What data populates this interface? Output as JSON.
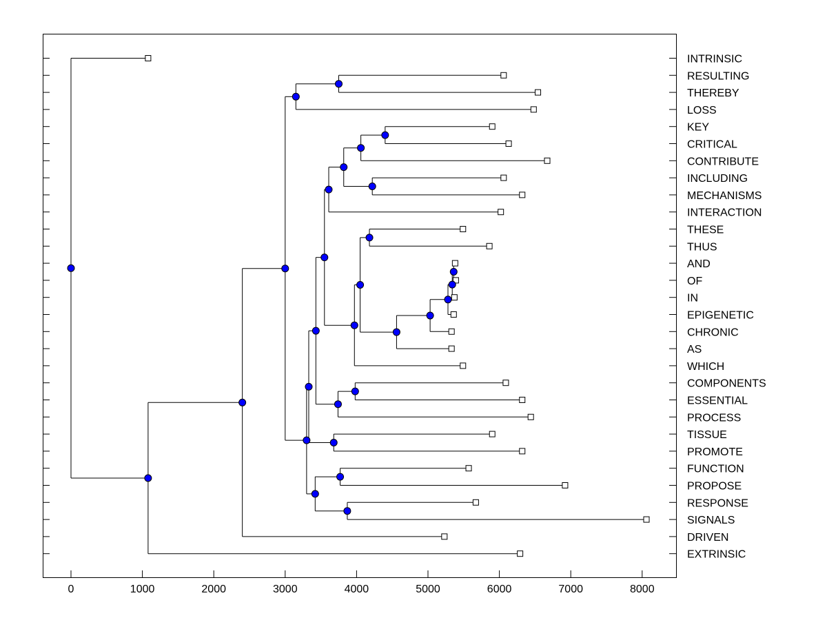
{
  "chart_data": {
    "type": "dendrogram",
    "title": "",
    "xlabel": "",
    "ylabel": "",
    "xlim": [
      -400,
      8500
    ],
    "x_ticks": [
      0,
      1000,
      2000,
      3000,
      4000,
      5000,
      6000,
      7000,
      8000
    ],
    "x_tick_labels": [
      "0",
      "1000",
      "2000",
      "3000",
      "4000",
      "5000",
      "6000",
      "7000",
      "8000"
    ],
    "grid": false,
    "colors": {
      "node_fill": "#0000ff",
      "leaf_fill": "#ffffff",
      "line": "#000000"
    },
    "leaves": [
      {
        "id": "l0",
        "label": "INTRINSIC",
        "distance": 1080
      },
      {
        "id": "l1",
        "label": "RESULTING",
        "distance": 6060
      },
      {
        "id": "l2",
        "label": "THEREBY",
        "distance": 6540
      },
      {
        "id": "l3",
        "label": "LOSS",
        "distance": 6480
      },
      {
        "id": "l4",
        "label": "KEY",
        "distance": 5900
      },
      {
        "id": "l5",
        "label": "CRITICAL",
        "distance": 6130
      },
      {
        "id": "l6",
        "label": "CONTRIBUTE",
        "distance": 6670
      },
      {
        "id": "l7",
        "label": "INCLUDING",
        "distance": 6060
      },
      {
        "id": "l8",
        "label": "MECHANISMS",
        "distance": 6320
      },
      {
        "id": "l9",
        "label": "INTERACTION",
        "distance": 6020
      },
      {
        "id": "l10",
        "label": "THESE",
        "distance": 5490
      },
      {
        "id": "l11",
        "label": "THUS",
        "distance": 5860
      },
      {
        "id": "l12",
        "label": "AND",
        "distance": 5380
      },
      {
        "id": "l13",
        "label": "OF",
        "distance": 5390
      },
      {
        "id": "l14",
        "label": "IN",
        "distance": 5370
      },
      {
        "id": "l15",
        "label": "EPIGENETIC",
        "distance": 5360
      },
      {
        "id": "l16",
        "label": "CHRONIC",
        "distance": 5330
      },
      {
        "id": "l17",
        "label": "AS",
        "distance": 5330
      },
      {
        "id": "l18",
        "label": "WHICH",
        "distance": 5490
      },
      {
        "id": "l19",
        "label": "COMPONENTS",
        "distance": 6090
      },
      {
        "id": "l20",
        "label": "ESSENTIAL",
        "distance": 6320
      },
      {
        "id": "l21",
        "label": "PROCESS",
        "distance": 6440
      },
      {
        "id": "l22",
        "label": "TISSUE",
        "distance": 5900
      },
      {
        "id": "l23",
        "label": "PROMOTE",
        "distance": 6320
      },
      {
        "id": "l24",
        "label": "FUNCTION",
        "distance": 5570
      },
      {
        "id": "l25",
        "label": "PROPOSE",
        "distance": 6920
      },
      {
        "id": "l26",
        "label": "RESPONSE",
        "distance": 5670
      },
      {
        "id": "l27",
        "label": "SIGNALS",
        "distance": 8060
      },
      {
        "id": "l28",
        "label": "DRIVEN",
        "distance": 5230
      },
      {
        "id": "l29",
        "label": "EXTRINSIC",
        "distance": 6290
      }
    ],
    "nodes": [
      {
        "id": "n1",
        "distance": 5360,
        "children": [
          "l12",
          "l13"
        ]
      },
      {
        "id": "n2",
        "distance": 5340,
        "children": [
          "n1",
          "l14"
        ]
      },
      {
        "id": "n3",
        "distance": 5280,
        "children": [
          "n2",
          "l15"
        ]
      },
      {
        "id": "n4",
        "distance": 5030,
        "children": [
          "n3",
          "l16"
        ]
      },
      {
        "id": "n5",
        "distance": 4560,
        "children": [
          "n4",
          "l17"
        ]
      },
      {
        "id": "n6",
        "distance": 4180,
        "children": [
          "l10",
          "l11"
        ]
      },
      {
        "id": "n7",
        "distance": 4050,
        "children": [
          "n6",
          "n5"
        ]
      },
      {
        "id": "n8",
        "distance": 3970,
        "children": [
          "n7",
          "l18"
        ]
      },
      {
        "id": "n9",
        "distance": 4400,
        "children": [
          "l4",
          "l5"
        ]
      },
      {
        "id": "n10",
        "distance": 4060,
        "children": [
          "n9",
          "l6"
        ]
      },
      {
        "id": "n11",
        "distance": 4220,
        "children": [
          "l7",
          "l8"
        ]
      },
      {
        "id": "n12",
        "distance": 3820,
        "children": [
          "n10",
          "n11"
        ]
      },
      {
        "id": "n13",
        "distance": 3610,
        "children": [
          "n12",
          "l9"
        ]
      },
      {
        "id": "n14",
        "distance": 3550,
        "children": [
          "n13",
          "n8"
        ]
      },
      {
        "id": "n15",
        "distance": 3980,
        "children": [
          "l19",
          "l20"
        ]
      },
      {
        "id": "n16",
        "distance": 3740,
        "children": [
          "n15",
          "l21"
        ]
      },
      {
        "id": "n17",
        "distance": 3430,
        "children": [
          "n14",
          "n16"
        ]
      },
      {
        "id": "n18",
        "distance": 3680,
        "children": [
          "l22",
          "l23"
        ]
      },
      {
        "id": "n19",
        "distance": 3330,
        "children": [
          "n17",
          "n18"
        ]
      },
      {
        "id": "n20",
        "distance": 3770,
        "children": [
          "l24",
          "l25"
        ]
      },
      {
        "id": "n21",
        "distance": 3870,
        "children": [
          "l26",
          "l27"
        ]
      },
      {
        "id": "n22",
        "distance": 3420,
        "children": [
          "n20",
          "n21"
        ]
      },
      {
        "id": "n23",
        "distance": 3300,
        "children": [
          "n19",
          "n22"
        ]
      },
      {
        "id": "n24",
        "distance": 3750,
        "children": [
          "l1",
          "l2"
        ]
      },
      {
        "id": "n25",
        "distance": 3150,
        "children": [
          "n24",
          "l3"
        ]
      },
      {
        "id": "n26",
        "distance": 3000,
        "children": [
          "n25",
          "n23"
        ]
      },
      {
        "id": "n27",
        "distance": 2400,
        "children": [
          "n26",
          "l28"
        ]
      },
      {
        "id": "n28",
        "distance": 1080,
        "children": [
          "n27",
          "l29"
        ]
      },
      {
        "id": "n29",
        "distance": 0,
        "children": [
          "l0",
          "n28"
        ]
      }
    ],
    "root": "n29"
  }
}
